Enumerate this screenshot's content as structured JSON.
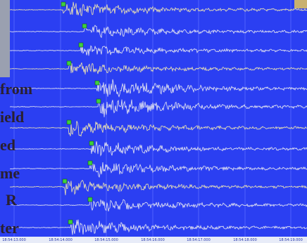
{
  "overlay_text": [
    "from",
    "ield",
    "ed",
    "me",
    "R",
    "ter"
  ],
  "time_labels": [
    "18:54:13.000",
    "18:54:14.000",
    "18:54:15.000",
    "18:54:16.000",
    "18:54:17.000",
    "18:54:18.000",
    "18:54:19.000"
  ]
}
